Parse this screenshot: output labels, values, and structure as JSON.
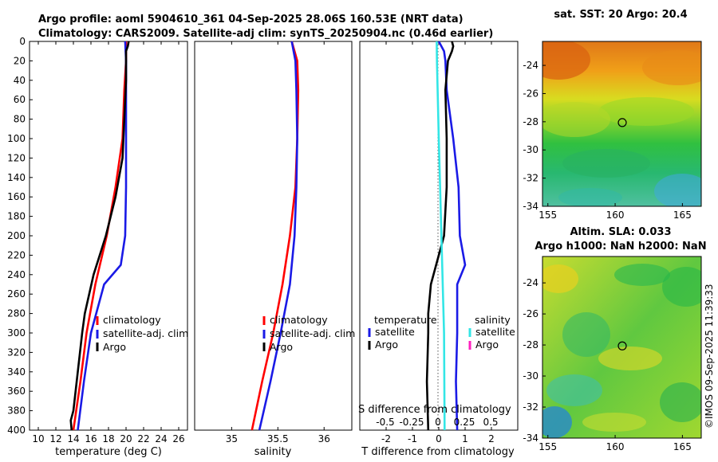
{
  "header": {
    "line1": "Argo profile: aoml 5904610_361 04-Sep-2025 28.06S 160.53E (NRT data)",
    "line2": "Climatology: CARS2009. Satellite-adj clim: synTS_20250904.nc (0.46d earlier)"
  },
  "colors": {
    "clim": "#ff0000",
    "sat": "#1a1ae6",
    "argo": "#000000",
    "sat_sal": "#33e6e6",
    "argo_sal": "#ff1fbf"
  },
  "chart_data": [
    {
      "id": "temperature",
      "type": "line",
      "xlabel": "temperature (deg C)",
      "xlim": [
        9,
        27
      ],
      "ylim": [
        0,
        400
      ],
      "xticks": [
        10,
        12,
        14,
        16,
        18,
        20,
        22,
        24,
        26
      ],
      "yticks": [
        0,
        20,
        40,
        60,
        80,
        100,
        120,
        140,
        160,
        180,
        200,
        220,
        240,
        260,
        280,
        300,
        320,
        340,
        360,
        380,
        400
      ],
      "legend": {
        "position": "middle-right",
        "entries": [
          "climatology",
          "satellite-adj. clim",
          "Argo"
        ]
      },
      "series": [
        {
          "name": "climatology",
          "color": "clim",
          "depth": [
            0,
            20,
            50,
            100,
            150,
            200,
            250,
            300,
            350,
            400
          ],
          "values": [
            20.0,
            20.0,
            19.8,
            19.6,
            18.8,
            17.8,
            16.5,
            15.5,
            14.8,
            14.0
          ]
        },
        {
          "name": "satellite-adj. clim",
          "color": "sat",
          "depth": [
            0,
            20,
            50,
            100,
            150,
            200,
            230,
            250,
            300,
            350,
            400
          ],
          "values": [
            19.9,
            20.0,
            20.0,
            20.0,
            20.0,
            19.9,
            19.4,
            17.5,
            16.0,
            15.2,
            14.5
          ]
        },
        {
          "name": "Argo",
          "color": "argo",
          "depth": [
            0,
            5,
            10,
            20,
            40,
            80,
            120,
            160,
            200,
            240,
            280,
            300,
            340,
            380,
            390,
            400
          ],
          "values": [
            20.3,
            20.2,
            20.0,
            20.0,
            20.0,
            19.8,
            19.6,
            18.8,
            17.7,
            16.3,
            15.3,
            15.0,
            14.5,
            14.0,
            13.7,
            13.8
          ]
        }
      ]
    },
    {
      "id": "salinity",
      "type": "line",
      "xlabel": "salinity",
      "xlim": [
        34.6,
        36.3
      ],
      "ylim": [
        0,
        400
      ],
      "xticks": [
        35,
        35.5,
        36
      ],
      "legend": {
        "position": "middle-right",
        "entries": [
          "climatology",
          "satellite-adj. clim",
          "Argo"
        ]
      },
      "series": [
        {
          "name": "climatology",
          "color": "clim",
          "depth": [
            0,
            20,
            50,
            100,
            150,
            200,
            250,
            300,
            350,
            400
          ],
          "values": [
            35.65,
            35.71,
            35.72,
            35.71,
            35.69,
            35.63,
            35.55,
            35.45,
            35.33,
            35.22
          ]
        },
        {
          "name": "satellite-adj. clim",
          "color": "sat",
          "depth": [
            0,
            10,
            20,
            50,
            100,
            150,
            200,
            250,
            300,
            350,
            400
          ],
          "values": [
            35.65,
            35.67,
            35.69,
            35.7,
            35.71,
            35.7,
            35.68,
            35.63,
            35.53,
            35.42,
            35.3
          ]
        }
      ]
    },
    {
      "id": "difference",
      "type": "line",
      "xlabel": "T difference from climatology",
      "xlim": [
        -3,
        3
      ],
      "ylim": [
        0,
        400
      ],
      "xticks": [
        -2,
        -1,
        0,
        1,
        2
      ],
      "top_label": "S difference from climatology",
      "top_ticks": [
        "-0.5",
        "-0.25",
        "0",
        "0.25",
        "0.5"
      ],
      "legend": {
        "position": "middle",
        "temperature_header": "temperature",
        "salinity_header": "salinity",
        "temperature_entries": [
          "satellite",
          "Argo"
        ],
        "salinity_entries": [
          "satellite",
          "Argo"
        ]
      },
      "series": [
        {
          "name": "temperature satellite",
          "color": "sat",
          "depth": [
            0,
            10,
            20,
            50,
            100,
            150,
            200,
            230,
            250,
            300,
            350,
            400
          ],
          "values": [
            0.0,
            0.2,
            0.25,
            0.3,
            0.55,
            0.75,
            0.8,
            1.0,
            0.7,
            0.7,
            0.65,
            0.7
          ]
        },
        {
          "name": "temperature Argo",
          "color": "argo",
          "depth": [
            0,
            5,
            10,
            20,
            50,
            100,
            150,
            200,
            220,
            250,
            280,
            300,
            350,
            400
          ],
          "values": [
            0.5,
            0.55,
            0.5,
            0.35,
            0.25,
            0.3,
            0.3,
            0.2,
            0.0,
            -0.3,
            -0.4,
            -0.4,
            -0.45,
            -0.4
          ]
        },
        {
          "name": "salinity satellite",
          "color": "sat_sal",
          "depth": [
            0,
            20,
            100,
            200,
            300,
            400
          ],
          "values": [
            -0.08,
            -0.07,
            0.0,
            0.1,
            0.2,
            0.22
          ]
        }
      ]
    },
    {
      "id": "sst-map",
      "type": "heatmap",
      "title": "sat. SST: 20 Argo: 20.4",
      "xlim": [
        154.6,
        166.4
      ],
      "ylim": [
        -34,
        -22.3
      ],
      "xticks": [
        155,
        160,
        165
      ],
      "yticks": [
        -24,
        -26,
        -28,
        -30,
        -32,
        -34
      ],
      "marker": {
        "lon": 160.53,
        "lat": -28.06
      }
    },
    {
      "id": "sla-map",
      "type": "heatmap",
      "title_line1": "Altim. SLA: 0.033",
      "title_line2": "Argo h1000: NaN h2000: NaN",
      "xlim": [
        154.6,
        166.4
      ],
      "ylim": [
        -34,
        -22.3
      ],
      "xticks": [
        155,
        160,
        165
      ],
      "yticks": [
        -24,
        -26,
        -28,
        -30,
        -32,
        -34
      ],
      "marker": {
        "lon": 160.53,
        "lat": -28.06
      }
    }
  ],
  "footer": {
    "stamp": "©IMOS 09-Sep-2025 11:39:33"
  }
}
